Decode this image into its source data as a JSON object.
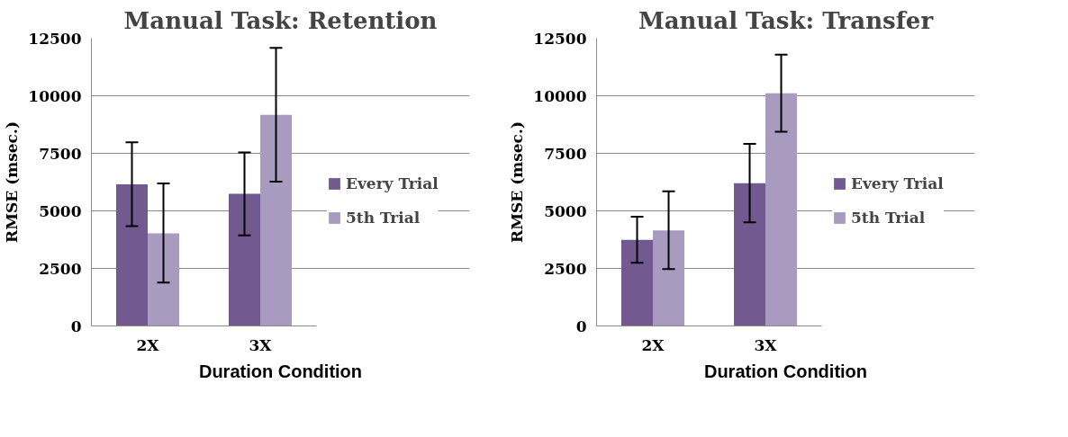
{
  "chart_data": [
    {
      "type": "bar",
      "title": "Manual Task: Retention",
      "xlabel": "Duration Condition",
      "ylabel": "RMSE (msec.)",
      "categories": [
        "2X",
        "3X"
      ],
      "series": [
        {
          "name": "Every Trial",
          "color": "#725a91",
          "values": [
            6150,
            5740
          ],
          "errors": [
            [
              4340,
              7980
            ],
            [
              3940,
              7540
            ]
          ]
        },
        {
          "name": "5th Trial",
          "color": "#a99bbf",
          "values": [
            4020,
            9170
          ],
          "errors": [
            [
              1880,
              6190
            ],
            [
              6270,
              12080
            ]
          ]
        }
      ],
      "ylim": [
        0,
        12500
      ],
      "yticks": [
        0,
        2500,
        5000,
        7500,
        10000,
        12500
      ],
      "grid": "y",
      "legend": "right"
    },
    {
      "type": "bar",
      "title": "Manual Task: Transfer",
      "xlabel": "Duration Condition",
      "ylabel": "RMSE (msec.)",
      "categories": [
        "2X",
        "3X"
      ],
      "series": [
        {
          "name": "Every Trial",
          "color": "#725a91",
          "values": [
            3740,
            6200
          ],
          "errors": [
            [
              2740,
              4750
            ],
            [
              4500,
              7910
            ]
          ]
        },
        {
          "name": "5th Trial",
          "color": "#a99bbf",
          "values": [
            4150,
            10110
          ],
          "errors": [
            [
              2470,
              5850
            ],
            [
              8440,
              11790
            ]
          ]
        }
      ],
      "ylim": [
        0,
        12500
      ],
      "yticks": [
        0,
        2500,
        5000,
        7500,
        10000,
        12500
      ],
      "grid": "y",
      "legend": "right"
    }
  ]
}
